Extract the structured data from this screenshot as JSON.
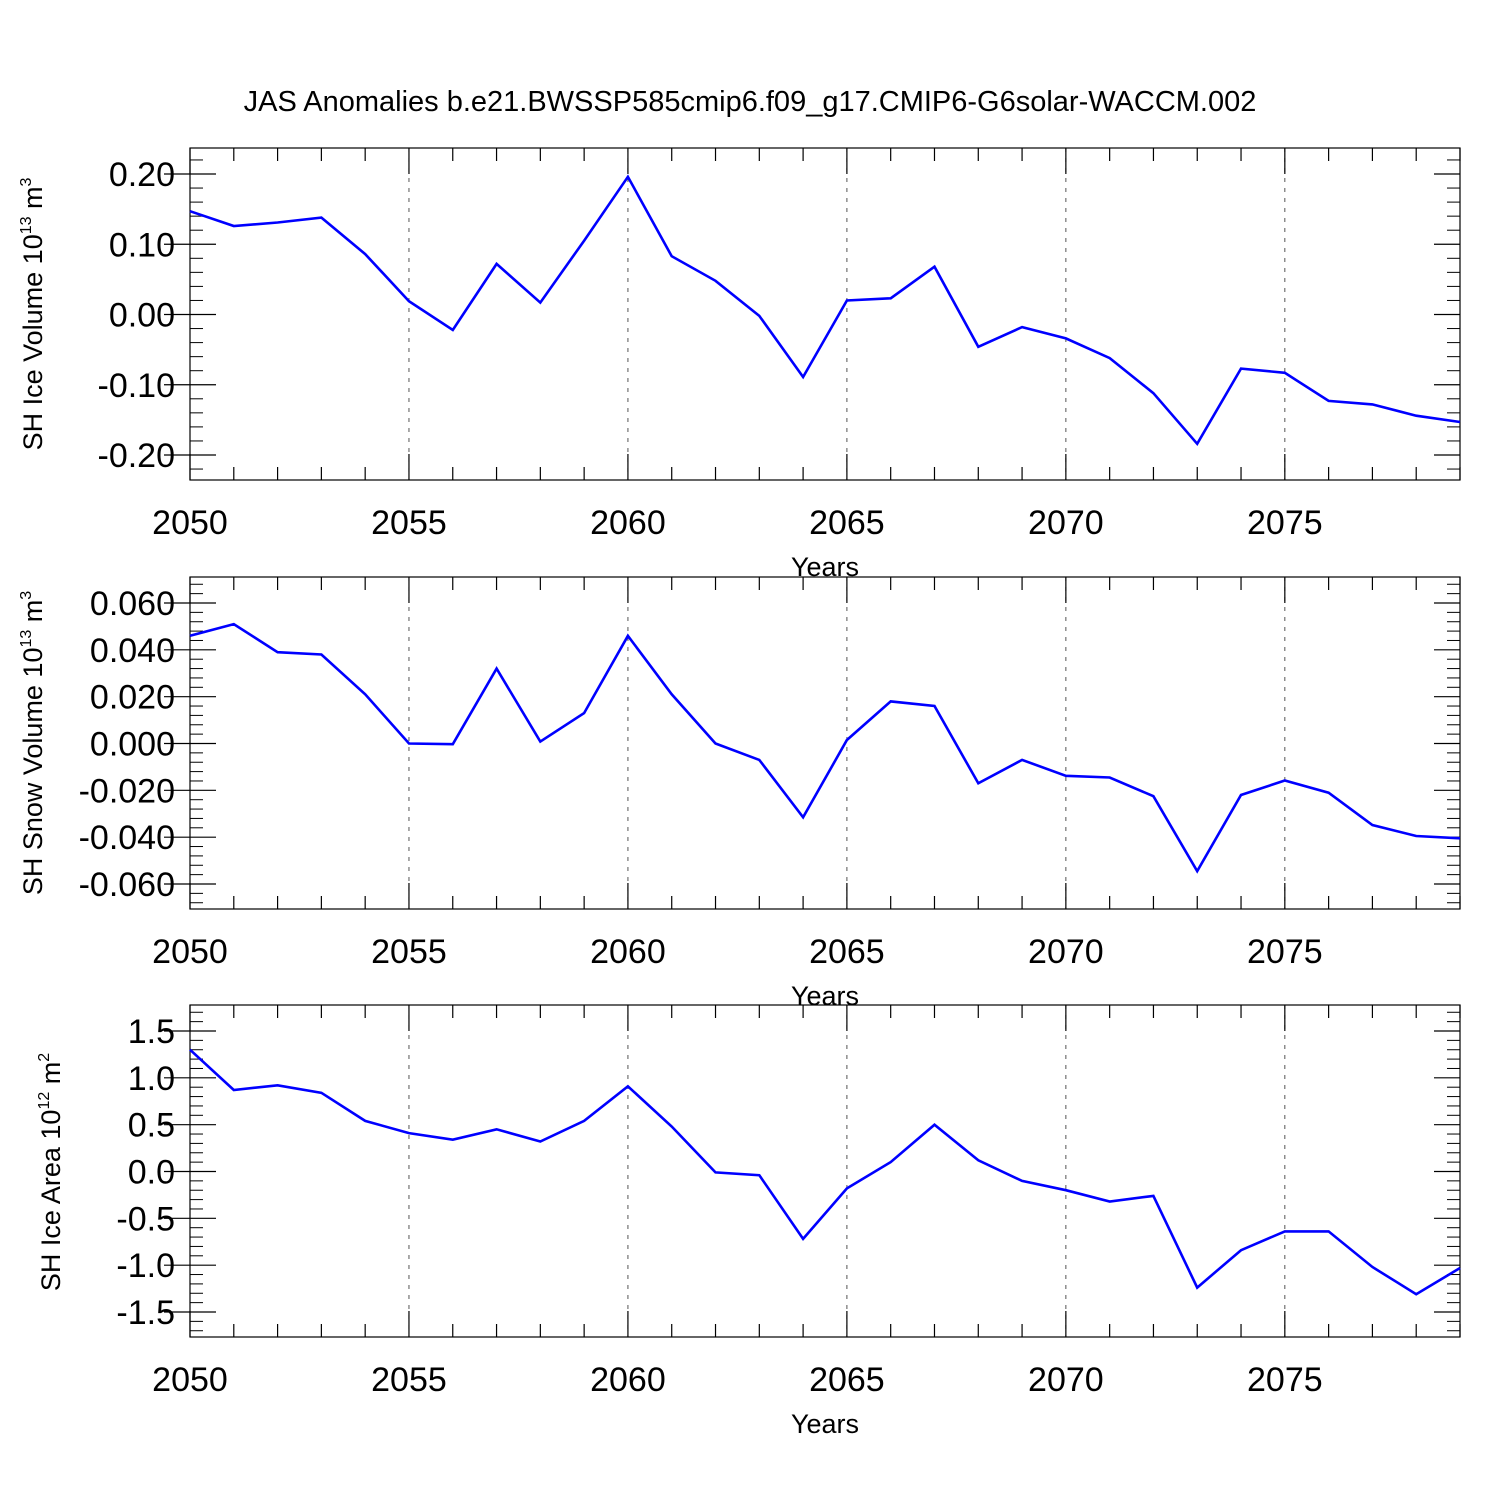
{
  "title": "JAS Anomalies b.e21.BWSSP585cmip6.f09_g17.CMIP6-G6solar-WACCM.002",
  "chart_data": [
    {
      "type": "line",
      "title": "",
      "xlabel": "Years",
      "ylabel": {
        "main": "SH Ice Volume 10",
        "exp": "13",
        "unit": " m",
        "unit_exp": "3"
      },
      "xlim": [
        2050,
        2079
      ],
      "ylim": [
        -0.2,
        0.2
      ],
      "x_ticks": [
        2050,
        2055,
        2060,
        2065,
        2070,
        2075
      ],
      "x_tick_labels": [
        "2050",
        "2055",
        "2060",
        "2065",
        "2070",
        "2075"
      ],
      "y_ticks": [
        -0.2,
        -0.1,
        0.0,
        0.1,
        0.2
      ],
      "y_tick_labels": [
        "-0.20",
        "-0.10",
        "0.00",
        "0.10",
        "0.20"
      ],
      "grid": "vertical dashed at major x ticks",
      "color": "#0000ff",
      "x": [
        2050,
        2051,
        2052,
        2053,
        2054,
        2055,
        2056,
        2057,
        2058,
        2059,
        2060,
        2061,
        2062,
        2063,
        2064,
        2065,
        2066,
        2067,
        2068,
        2069,
        2070,
        2071,
        2072,
        2073,
        2074,
        2075,
        2076,
        2077,
        2078,
        2079
      ],
      "values": [
        0.147,
        0.126,
        0.131,
        0.138,
        0.086,
        0.019,
        -0.022,
        0.072,
        0.017,
        0.105,
        0.196,
        0.083,
        0.048,
        -0.002,
        -0.089,
        0.02,
        0.023,
        0.068,
        -0.046,
        -0.018,
        -0.034,
        -0.062,
        -0.112,
        -0.184,
        -0.077,
        -0.083,
        -0.123,
        -0.128,
        -0.144,
        -0.153
      ]
    },
    {
      "type": "line",
      "title": "",
      "xlabel": "Years",
      "ylabel": {
        "main": "SH Snow Volume 10",
        "exp": "13",
        "unit": " m",
        "unit_exp": "3"
      },
      "xlim": [
        2050,
        2079
      ],
      "ylim": [
        -0.06,
        0.06
      ],
      "x_ticks": [
        2050,
        2055,
        2060,
        2065,
        2070,
        2075
      ],
      "x_tick_labels": [
        "2050",
        "2055",
        "2060",
        "2065",
        "2070",
        "2075"
      ],
      "y_ticks": [
        -0.06,
        -0.04,
        -0.02,
        0.0,
        0.02,
        0.04,
        0.06
      ],
      "y_tick_labels": [
        "-0.060",
        "-0.040",
        "-0.020",
        "0.000",
        "0.020",
        "0.040",
        "0.060"
      ],
      "grid": "vertical dashed at major x ticks",
      "color": "#0000ff",
      "x": [
        2050,
        2051,
        2052,
        2053,
        2054,
        2055,
        2056,
        2057,
        2058,
        2059,
        2060,
        2061,
        2062,
        2063,
        2064,
        2065,
        2066,
        2067,
        2068,
        2069,
        2070,
        2071,
        2072,
        2073,
        2074,
        2075,
        2076,
        2077,
        2078,
        2079
      ],
      "values": [
        0.046,
        0.051,
        0.039,
        0.038,
        0.021,
        0.0,
        -0.0003,
        0.032,
        0.0008,
        0.013,
        0.046,
        0.021,
        0.0,
        -0.007,
        -0.0315,
        0.0015,
        0.018,
        0.016,
        -0.017,
        -0.007,
        -0.0138,
        -0.0145,
        -0.0225,
        -0.0545,
        -0.022,
        -0.0158,
        -0.021,
        -0.0348,
        -0.0395,
        -0.0405
      ]
    },
    {
      "type": "line",
      "title": "",
      "xlabel": "Years",
      "ylabel": {
        "main": "SH Ice Area 10",
        "exp": "12",
        "unit": " m",
        "unit_exp": "2"
      },
      "xlim": [
        2050,
        2079
      ],
      "ylim": [
        -1.5,
        1.5
      ],
      "x_ticks": [
        2050,
        2055,
        2060,
        2065,
        2070,
        2075
      ],
      "x_tick_labels": [
        "2050",
        "2055",
        "2060",
        "2065",
        "2070",
        "2075"
      ],
      "y_ticks": [
        -1.5,
        -1.0,
        -0.5,
        0.0,
        0.5,
        1.0,
        1.5
      ],
      "y_tick_labels": [
        "-1.5",
        "-1.0",
        "-0.5",
        "0.0",
        "0.5",
        "1.0",
        "1.5"
      ],
      "grid": "vertical dashed at major x ticks",
      "color": "#0000ff",
      "x": [
        2050,
        2051,
        2052,
        2053,
        2054,
        2055,
        2056,
        2057,
        2058,
        2059,
        2060,
        2061,
        2062,
        2063,
        2064,
        2065,
        2066,
        2067,
        2068,
        2069,
        2070,
        2071,
        2072,
        2073,
        2074,
        2075,
        2076,
        2077,
        2078,
        2079
      ],
      "values": [
        1.3,
        0.87,
        0.92,
        0.84,
        0.54,
        0.41,
        0.34,
        0.45,
        0.32,
        0.54,
        0.91,
        0.48,
        -0.01,
        -0.04,
        -0.72,
        -0.18,
        0.1,
        0.5,
        0.12,
        -0.1,
        -0.2,
        -0.32,
        -0.26,
        -1.24,
        -0.84,
        -0.64,
        -0.64,
        -1.02,
        -1.31,
        -1.03
      ]
    }
  ]
}
